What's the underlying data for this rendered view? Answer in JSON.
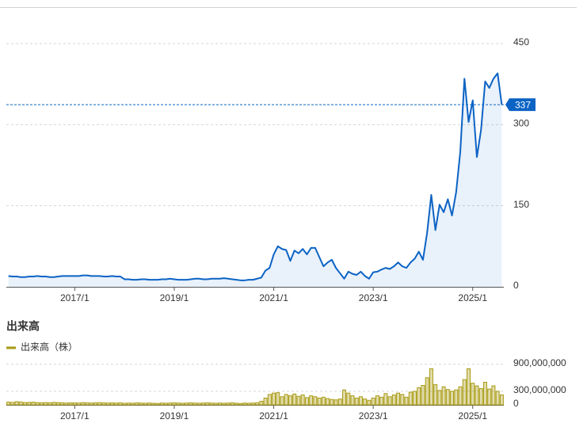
{
  "chart_data": [
    {
      "type": "area",
      "categories": [
        "2015/9",
        "2015/10",
        "2015/11",
        "2015/12",
        "2016/1",
        "2016/2",
        "2016/3",
        "2016/4",
        "2016/5",
        "2016/6",
        "2016/7",
        "2016/8",
        "2016/9",
        "2016/10",
        "2016/11",
        "2016/12",
        "2017/1",
        "2017/2",
        "2017/3",
        "2017/4",
        "2017/5",
        "2017/6",
        "2017/7",
        "2017/8",
        "2017/9",
        "2017/10",
        "2017/11",
        "2017/12",
        "2018/1",
        "2018/2",
        "2018/3",
        "2018/4",
        "2018/5",
        "2018/6",
        "2018/7",
        "2018/8",
        "2018/9",
        "2018/10",
        "2018/11",
        "2018/12",
        "2019/1",
        "2019/2",
        "2019/3",
        "2019/4",
        "2019/5",
        "2019/6",
        "2019/7",
        "2019/8",
        "2019/9",
        "2019/10",
        "2019/11",
        "2019/12",
        "2020/1",
        "2020/2",
        "2020/3",
        "2020/4",
        "2020/5",
        "2020/6",
        "2020/7",
        "2020/8",
        "2020/9",
        "2020/10",
        "2020/11",
        "2020/12",
        "2021/1",
        "2021/2",
        "2021/3",
        "2021/4",
        "2021/5",
        "2021/6",
        "2021/7",
        "2021/8",
        "2021/9",
        "2021/10",
        "2021/11",
        "2021/12",
        "2022/1",
        "2022/2",
        "2022/3",
        "2022/4",
        "2022/5",
        "2022/6",
        "2022/7",
        "2022/8",
        "2022/9",
        "2022/10",
        "2022/11",
        "2022/12",
        "2023/1",
        "2023/2",
        "2023/3",
        "2023/4",
        "2023/5",
        "2023/6",
        "2023/7",
        "2023/8",
        "2023/9",
        "2023/10",
        "2023/11",
        "2023/12",
        "2024/1",
        "2024/2",
        "2024/3",
        "2024/4",
        "2024/5",
        "2024/6",
        "2024/7",
        "2024/8",
        "2024/9",
        "2024/10",
        "2024/11",
        "2024/12",
        "2025/1",
        "2025/2",
        "2025/3",
        "2025/4",
        "2025/5",
        "2025/6",
        "2025/7",
        "2025/8"
      ],
      "xticks": [
        "2017/1",
        "2019/1",
        "2021/1",
        "2023/1",
        "2025/1"
      ],
      "ylim": [
        0,
        450
      ],
      "yticks": [
        0,
        150,
        300,
        450
      ],
      "grid": true,
      "series": [
        {
          "color": "#0b63c5",
          "values": [
            20,
            19,
            19,
            18,
            18,
            19,
            19,
            20,
            19,
            19,
            18,
            18,
            19,
            20,
            20,
            20,
            20,
            20,
            21,
            21,
            20,
            20,
            20,
            19,
            19,
            20,
            19,
            19,
            14,
            14,
            13,
            13,
            14,
            14,
            13,
            13,
            13,
            14,
            14,
            15,
            14,
            13,
            13,
            13,
            14,
            15,
            15,
            14,
            14,
            15,
            15,
            15,
            16,
            15,
            14,
            13,
            12,
            12,
            13,
            13,
            15,
            17,
            30,
            35,
            60,
            75,
            70,
            68,
            48,
            67,
            62,
            70,
            60,
            72,
            72,
            55,
            38,
            45,
            50,
            35,
            25,
            15,
            28,
            24,
            22,
            28,
            20,
            15,
            27,
            28,
            32,
            35,
            33,
            38,
            45,
            38,
            35,
            45,
            52,
            65,
            50,
            100,
            170,
            105,
            152,
            138,
            162,
            132,
            175,
            250,
            385,
            305,
            345,
            240,
            290,
            380,
            368,
            385,
            395,
            337
          ]
        }
      ]
    },
    {
      "type": "bar",
      "title": "出来高",
      "categories": [
        "2015/9",
        "2015/10",
        "2015/11",
        "2015/12",
        "2016/1",
        "2016/2",
        "2016/3",
        "2016/4",
        "2016/5",
        "2016/6",
        "2016/7",
        "2016/8",
        "2016/9",
        "2016/10",
        "2016/11",
        "2016/12",
        "2017/1",
        "2017/2",
        "2017/3",
        "2017/4",
        "2017/5",
        "2017/6",
        "2017/7",
        "2017/8",
        "2017/9",
        "2017/10",
        "2017/11",
        "2017/12",
        "2018/1",
        "2018/2",
        "2018/3",
        "2018/4",
        "2018/5",
        "2018/6",
        "2018/7",
        "2018/8",
        "2018/9",
        "2018/10",
        "2018/11",
        "2018/12",
        "2019/1",
        "2019/2",
        "2019/3",
        "2019/4",
        "2019/5",
        "2019/6",
        "2019/7",
        "2019/8",
        "2019/9",
        "2019/10",
        "2019/11",
        "2019/12",
        "2020/1",
        "2020/2",
        "2020/3",
        "2020/4",
        "2020/5",
        "2020/6",
        "2020/7",
        "2020/8",
        "2020/9",
        "2020/10",
        "2020/11",
        "2020/12",
        "2021/1",
        "2021/2",
        "2021/3",
        "2021/4",
        "2021/5",
        "2021/6",
        "2021/7",
        "2021/8",
        "2021/9",
        "2021/10",
        "2021/11",
        "2021/12",
        "2022/1",
        "2022/2",
        "2022/3",
        "2022/4",
        "2022/5",
        "2022/6",
        "2022/7",
        "2022/8",
        "2022/9",
        "2022/10",
        "2022/11",
        "2022/12",
        "2023/1",
        "2023/2",
        "2023/3",
        "2023/4",
        "2023/5",
        "2023/6",
        "2023/7",
        "2023/8",
        "2023/9",
        "2023/10",
        "2023/11",
        "2023/12",
        "2024/1",
        "2024/2",
        "2024/3",
        "2024/4",
        "2024/5",
        "2024/6",
        "2024/7",
        "2024/8",
        "2024/9",
        "2024/10",
        "2024/11",
        "2024/12",
        "2025/1",
        "2025/2",
        "2025/3",
        "2025/4",
        "2025/5",
        "2025/6",
        "2025/7",
        "2025/8"
      ],
      "xticks": [
        "2017/1",
        "2019/1",
        "2021/1",
        "2023/1",
        "2025/1"
      ],
      "ylim": [
        0,
        1000000000
      ],
      "yticks": [
        0,
        {
          "value": 300000000,
          "label": "300,000,000"
        },
        {
          "value": 900000000,
          "label": "900,000,000"
        }
      ],
      "grid": true,
      "series": [
        {
          "name": "出来高（株）",
          "color": "#a89a12",
          "values": [
            60000000,
            55000000,
            70000000,
            65000000,
            50000000,
            55000000,
            60000000,
            50000000,
            45000000,
            50000000,
            45000000,
            55000000,
            50000000,
            45000000,
            40000000,
            45000000,
            45000000,
            40000000,
            50000000,
            45000000,
            40000000,
            45000000,
            50000000,
            45000000,
            40000000,
            45000000,
            40000000,
            45000000,
            35000000,
            40000000,
            35000000,
            45000000,
            40000000,
            35000000,
            40000000,
            35000000,
            30000000,
            40000000,
            35000000,
            40000000,
            45000000,
            40000000,
            35000000,
            40000000,
            45000000,
            40000000,
            35000000,
            40000000,
            45000000,
            40000000,
            35000000,
            40000000,
            35000000,
            40000000,
            45000000,
            35000000,
            30000000,
            40000000,
            35000000,
            40000000,
            45000000,
            80000000,
            150000000,
            230000000,
            260000000,
            270000000,
            180000000,
            230000000,
            200000000,
            240000000,
            190000000,
            220000000,
            160000000,
            200000000,
            180000000,
            150000000,
            170000000,
            140000000,
            120000000,
            110000000,
            130000000,
            330000000,
            260000000,
            200000000,
            150000000,
            180000000,
            130000000,
            100000000,
            150000000,
            200000000,
            170000000,
            250000000,
            180000000,
            220000000,
            260000000,
            230000000,
            170000000,
            280000000,
            300000000,
            380000000,
            430000000,
            600000000,
            800000000,
            450000000,
            320000000,
            400000000,
            340000000,
            300000000,
            330000000,
            400000000,
            560000000,
            800000000,
            480000000,
            420000000,
            360000000,
            500000000,
            350000000,
            420000000,
            300000000,
            220000000
          ]
        }
      ]
    }
  ]
}
